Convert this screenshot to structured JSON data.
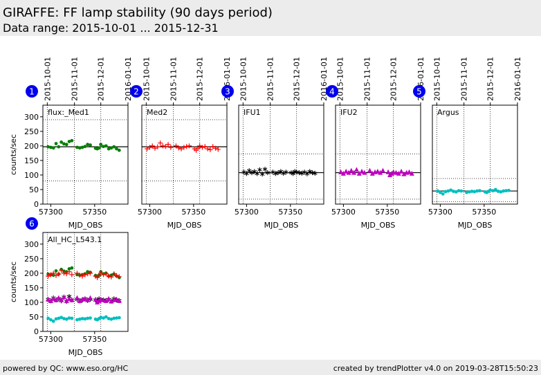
{
  "header": {
    "title": "GIRAFFE: FF lamp stability (90 days period)",
    "subtitle": "Data range: 2015-10-01 ... 2015-12-31"
  },
  "footer": {
    "left": "powered by QC: www.eso.org/HC",
    "right": "created by trendPlotter v4.0 on 2019-03-28T15:50:23"
  },
  "chart_data": [
    {
      "type": "scatter",
      "badge": "1",
      "label": "flux:_Med1",
      "xlabel": "MJD_OBS",
      "ylabel": "counts/sec",
      "xlim": [
        57291,
        57388
      ],
      "xticks": [
        57300,
        57350
      ],
      "ylim": [
        0,
        340
      ],
      "yticks": [
        0,
        50,
        100,
        150,
        200,
        250,
        300
      ],
      "x2ticks": [
        {
          "value": 57296,
          "label": "2015-10-01"
        },
        {
          "value": 57327,
          "label": "2015-11-01"
        },
        {
          "value": 57357,
          "label": "2015-12-01"
        },
        {
          "value": 57388,
          "label": "2016-01-01"
        }
      ],
      "date_labels": true,
      "hlines": [
        {
          "value": 197,
          "style": "solid"
        },
        {
          "value": 290,
          "style": "dotted"
        },
        {
          "value": 80,
          "style": "dotted"
        }
      ],
      "x": [
        57297,
        57300,
        57303,
        57306,
        57309,
        57312,
        57315,
        57318,
        57321,
        57324,
        57330,
        57333,
        57336,
        57339,
        57342,
        57345,
        57351,
        57353,
        57355,
        57357,
        57360,
        57363,
        57366,
        57369,
        57372,
        57375,
        57378
      ],
      "series": [
        {
          "marker": "circle",
          "color": "#007f00",
          "values": [
            197,
            195,
            193,
            208,
            197,
            213,
            207,
            205,
            215,
            218,
            195,
            193,
            195,
            198,
            205,
            203,
            192,
            190,
            193,
            205,
            198,
            200,
            190,
            193,
            197,
            190,
            185
          ]
        }
      ]
    },
    {
      "type": "scatter",
      "badge": "2",
      "label": "Med2",
      "xlabel": "MJD_OBS",
      "xlim": [
        57291,
        57388
      ],
      "xticks": [
        57300,
        57350
      ],
      "ylim": [
        0,
        340
      ],
      "x2ticks": [
        {
          "value": 57296,
          "label": "2015-10-01"
        },
        {
          "value": 57327,
          "label": "2015-11-01"
        },
        {
          "value": 57357,
          "label": "2015-12-01"
        },
        {
          "value": 57388,
          "label": "2016-01-01"
        }
      ],
      "date_labels": true,
      "hlines": [
        {
          "value": 197,
          "style": "solid"
        },
        {
          "value": 290,
          "style": "dotted"
        },
        {
          "value": 80,
          "style": "dotted"
        }
      ],
      "x": [
        57297,
        57300,
        57303,
        57306,
        57309,
        57312,
        57315,
        57318,
        57321,
        57324,
        57330,
        57333,
        57336,
        57339,
        57342,
        57345,
        57351,
        57353,
        57355,
        57357,
        57360,
        57363,
        57366,
        57369,
        57372,
        57375,
        57378
      ],
      "series": [
        {
          "marker": "plus",
          "color": "#ff0000",
          "values": [
            190,
            195,
            200,
            192,
            197,
            210,
            200,
            198,
            205,
            195,
            200,
            193,
            190,
            195,
            198,
            200,
            190,
            185,
            192,
            200,
            195,
            198,
            190,
            187,
            198,
            192,
            188
          ]
        }
      ]
    },
    {
      "type": "scatter",
      "badge": "3",
      "label": "IFU1",
      "xlabel": "MJD_OBS",
      "xlim": [
        57291,
        57388
      ],
      "xticks": [
        57300,
        57350
      ],
      "ylim": [
        0,
        340
      ],
      "x2ticks": [
        {
          "value": 57296,
          "label": "2015-10-01"
        },
        {
          "value": 57327,
          "label": "2015-11-01"
        },
        {
          "value": 57357,
          "label": "2015-12-01"
        },
        {
          "value": 57388,
          "label": "2016-01-01"
        }
      ],
      "date_labels": true,
      "hlines": [
        {
          "value": 108,
          "style": "solid"
        },
        {
          "value": 172,
          "style": "dotted"
        },
        {
          "value": 17,
          "style": "dotted"
        }
      ],
      "x": [
        57297,
        57300,
        57303,
        57306,
        57309,
        57312,
        57315,
        57318,
        57321,
        57324,
        57330,
        57333,
        57336,
        57339,
        57342,
        57345,
        57351,
        57353,
        57355,
        57357,
        57360,
        57363,
        57366,
        57369,
        57372,
        57375,
        57378
      ],
      "series": [
        {
          "marker": "star",
          "color": "#000000",
          "values": [
            110,
            105,
            115,
            108,
            112,
            105,
            118,
            103,
            120,
            108,
            110,
            105,
            108,
            112,
            106,
            110,
            108,
            105,
            112,
            110,
            108,
            106,
            110,
            104,
            112,
            108,
            106
          ]
        }
      ]
    },
    {
      "type": "scatter",
      "badge": "4",
      "label": "IFU2",
      "xlabel": "MJD_OBS",
      "xlim": [
        57291,
        57388
      ],
      "xticks": [
        57300,
        57350
      ],
      "ylim": [
        0,
        340
      ],
      "x2ticks": [
        {
          "value": 57296,
          "label": "2015-10-01"
        },
        {
          "value": 57327,
          "label": "2015-11-01"
        },
        {
          "value": 57357,
          "label": "2015-12-01"
        },
        {
          "value": 57388,
          "label": "2016-01-01"
        }
      ],
      "date_labels": true,
      "hlines": [
        {
          "value": 108,
          "style": "solid"
        },
        {
          "value": 172,
          "style": "dotted"
        },
        {
          "value": 17,
          "style": "dotted"
        }
      ],
      "x": [
        57297,
        57300,
        57303,
        57306,
        57309,
        57312,
        57315,
        57318,
        57321,
        57324,
        57330,
        57333,
        57336,
        57339,
        57342,
        57345,
        57351,
        57353,
        57355,
        57357,
        57360,
        57363,
        57366,
        57369,
        57372,
        57375,
        57378
      ],
      "series": [
        {
          "marker": "triangle",
          "color": "#bf00bf",
          "values": [
            110,
            105,
            112,
            108,
            115,
            108,
            118,
            105,
            112,
            108,
            115,
            105,
            110,
            112,
            108,
            115,
            110,
            100,
            105,
            110,
            108,
            105,
            112,
            103,
            108,
            110,
            105
          ]
        }
      ]
    },
    {
      "type": "scatter",
      "badge": "5",
      "label": "Argus",
      "xlabel": "MJD_OBS",
      "xlim": [
        57291,
        57388
      ],
      "xticks": [
        57300,
        57350
      ],
      "ylim": [
        0,
        340
      ],
      "x2ticks": [
        {
          "value": 57296,
          "label": "2015-10-01"
        },
        {
          "value": 57327,
          "label": "2015-11-01"
        },
        {
          "value": 57357,
          "label": "2015-12-01"
        },
        {
          "value": 57388,
          "label": "2016-01-01"
        }
      ],
      "date_labels": true,
      "hlines": [
        {
          "value": 45,
          "style": "solid"
        },
        {
          "value": 88,
          "style": "dotted"
        },
        {
          "value": 8,
          "style": "dotted"
        }
      ],
      "x": [
        57297,
        57300,
        57303,
        57306,
        57309,
        57312,
        57315,
        57318,
        57321,
        57324,
        57330,
        57333,
        57336,
        57339,
        57342,
        57345,
        57351,
        57353,
        57355,
        57357,
        57360,
        57363,
        57366,
        57369,
        57372,
        57375,
        57378
      ],
      "series": [
        {
          "marker": "circle",
          "color": "#00bfbf",
          "values": [
            45,
            40,
            35,
            43,
            45,
            48,
            44,
            42,
            46,
            45,
            40,
            42,
            44,
            43,
            45,
            46,
            42,
            40,
            44,
            48,
            46,
            50,
            44,
            42,
            45,
            46,
            47
          ]
        }
      ]
    },
    {
      "type": "scatter",
      "badge": "6",
      "label": "All_HC_L543.1",
      "xlabel": "MJD_OBS",
      "ylabel": "counts/sec",
      "xlim": [
        57291,
        57388
      ],
      "xticks": [
        57300,
        57350
      ],
      "ylim": [
        0,
        340
      ],
      "yticks": [
        0,
        50,
        100,
        150,
        200,
        250,
        300
      ],
      "x2ticks": [
        {
          "value": 57296,
          "label": "2015-10-01"
        },
        {
          "value": 57327,
          "label": "2015-11-01"
        },
        {
          "value": 57357,
          "label": "2015-12-01"
        },
        {
          "value": 57388,
          "label": "2016-01-01"
        }
      ],
      "date_labels": false,
      "hlines": [],
      "x": [
        57297,
        57300,
        57303,
        57306,
        57309,
        57312,
        57315,
        57318,
        57321,
        57324,
        57330,
        57333,
        57336,
        57339,
        57342,
        57345,
        57351,
        57353,
        57355,
        57357,
        57360,
        57363,
        57366,
        57369,
        57372,
        57375,
        57378
      ],
      "series": [
        {
          "marker": "circle",
          "color": "#007f00",
          "values": [
            197,
            195,
            193,
            208,
            197,
            213,
            207,
            205,
            215,
            218,
            195,
            193,
            195,
            198,
            205,
            203,
            192,
            190,
            193,
            205,
            198,
            200,
            190,
            193,
            197,
            190,
            185
          ]
        },
        {
          "marker": "plus",
          "color": "#ff0000",
          "values": [
            190,
            195,
            200,
            192,
            197,
            210,
            200,
            198,
            205,
            195,
            200,
            193,
            190,
            195,
            198,
            200,
            190,
            185,
            192,
            200,
            195,
            198,
            190,
            187,
            198,
            192,
            188
          ]
        },
        {
          "marker": "star",
          "color": "#000000",
          "values": [
            110,
            105,
            115,
            108,
            112,
            105,
            118,
            103,
            120,
            108,
            110,
            105,
            108,
            112,
            106,
            110,
            108,
            105,
            112,
            110,
            108,
            106,
            110,
            104,
            112,
            108,
            106
          ]
        },
        {
          "marker": "triangle",
          "color": "#bf00bf",
          "values": [
            110,
            105,
            112,
            108,
            115,
            108,
            118,
            105,
            112,
            108,
            115,
            105,
            110,
            112,
            108,
            115,
            110,
            100,
            105,
            110,
            108,
            105,
            112,
            103,
            108,
            110,
            105
          ]
        },
        {
          "marker": "circle",
          "color": "#00bfbf",
          "values": [
            45,
            40,
            35,
            43,
            45,
            48,
            44,
            42,
            46,
            45,
            40,
            42,
            44,
            43,
            45,
            46,
            42,
            40,
            44,
            48,
            46,
            50,
            44,
            42,
            45,
            46,
            47
          ]
        }
      ]
    }
  ]
}
